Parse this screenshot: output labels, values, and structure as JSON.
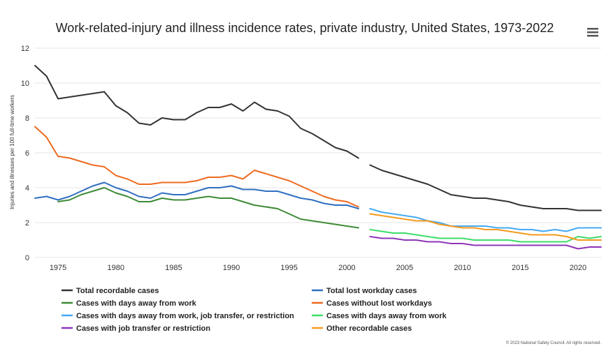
{
  "chart_data": {
    "type": "line",
    "title": "Work-related-injury and illness incidence rates, private industry, United States, 1973-2022",
    "xlabel": "",
    "ylabel": "Injuries and illnesses per 100 full-time workers",
    "xlim": [
      1973,
      2022
    ],
    "ylim": [
      0,
      12
    ],
    "x_ticks": [
      "1975",
      "1980",
      "1985",
      "1990",
      "1995",
      "2000",
      "2005",
      "2010",
      "2015",
      "2020"
    ],
    "y_ticks": [
      "0",
      "2",
      "4",
      "6",
      "8",
      "10",
      "12"
    ],
    "grid": true,
    "legend_position": "bottom",
    "credit": "© 2023 National Safety Council. All rights reserved.",
    "series": [
      {
        "name": "Total recordable cases",
        "color": "#333333",
        "segments": [
          [
            [
              1973,
              11.0
            ],
            [
              1974,
              10.4
            ],
            [
              1975,
              9.1
            ],
            [
              1976,
              9.2
            ],
            [
              1977,
              9.3
            ],
            [
              1978,
              9.4
            ],
            [
              1979,
              9.5
            ],
            [
              1980,
              8.7
            ],
            [
              1981,
              8.3
            ],
            [
              1982,
              7.7
            ],
            [
              1983,
              7.6
            ],
            [
              1984,
              8.0
            ],
            [
              1985,
              7.9
            ],
            [
              1986,
              7.9
            ],
            [
              1987,
              8.3
            ],
            [
              1988,
              8.6
            ],
            [
              1989,
              8.6
            ],
            [
              1990,
              8.8
            ],
            [
              1991,
              8.4
            ],
            [
              1992,
              8.9
            ],
            [
              1993,
              8.5
            ],
            [
              1994,
              8.4
            ],
            [
              1995,
              8.1
            ],
            [
              1996,
              7.4
            ],
            [
              1997,
              7.1
            ],
            [
              1998,
              6.7
            ],
            [
              1999,
              6.3
            ],
            [
              2000,
              6.1
            ],
            [
              2001,
              5.7
            ]
          ],
          [
            [
              2002,
              5.3
            ],
            [
              2003,
              5.0
            ],
            [
              2004,
              4.8
            ],
            [
              2005,
              4.6
            ],
            [
              2006,
              4.4
            ],
            [
              2007,
              4.2
            ],
            [
              2008,
              3.9
            ],
            [
              2009,
              3.6
            ],
            [
              2010,
              3.5
            ],
            [
              2011,
              3.4
            ],
            [
              2012,
              3.4
            ],
            [
              2013,
              3.3
            ],
            [
              2014,
              3.2
            ],
            [
              2015,
              3.0
            ],
            [
              2016,
              2.9
            ],
            [
              2017,
              2.8
            ],
            [
              2018,
              2.8
            ],
            [
              2019,
              2.8
            ],
            [
              2020,
              2.7
            ],
            [
              2021,
              2.7
            ],
            [
              2022,
              2.7
            ]
          ]
        ]
      },
      {
        "name": "Total lost workday cases",
        "color": "#2f6fc1",
        "segments": [
          [
            [
              1973,
              3.4
            ],
            [
              1974,
              3.5
            ],
            [
              1975,
              3.3
            ],
            [
              1976,
              3.5
            ],
            [
              1977,
              3.8
            ],
            [
              1978,
              4.1
            ],
            [
              1979,
              4.3
            ],
            [
              1980,
              4.0
            ],
            [
              1981,
              3.8
            ],
            [
              1982,
              3.5
            ],
            [
              1983,
              3.4
            ],
            [
              1984,
              3.7
            ],
            [
              1985,
              3.6
            ],
            [
              1986,
              3.6
            ],
            [
              1987,
              3.8
            ],
            [
              1988,
              4.0
            ],
            [
              1989,
              4.0
            ],
            [
              1990,
              4.1
            ],
            [
              1991,
              3.9
            ],
            [
              1992,
              3.9
            ],
            [
              1993,
              3.8
            ],
            [
              1994,
              3.8
            ],
            [
              1995,
              3.6
            ],
            [
              1996,
              3.4
            ],
            [
              1997,
              3.3
            ],
            [
              1998,
              3.1
            ],
            [
              1999,
              3.0
            ],
            [
              2000,
              3.0
            ],
            [
              2001,
              2.8
            ]
          ]
        ]
      },
      {
        "name": "Cases with days away from work",
        "color": "#3d8b37",
        "segments": [
          [
            [
              1975,
              3.2
            ],
            [
              1976,
              3.3
            ],
            [
              1977,
              3.6
            ],
            [
              1978,
              3.8
            ],
            [
              1979,
              4.0
            ],
            [
              1980,
              3.7
            ],
            [
              1981,
              3.5
            ],
            [
              1982,
              3.2
            ],
            [
              1983,
              3.2
            ],
            [
              1984,
              3.4
            ],
            [
              1985,
              3.3
            ],
            [
              1986,
              3.3
            ],
            [
              1987,
              3.4
            ],
            [
              1988,
              3.5
            ],
            [
              1989,
              3.4
            ],
            [
              1990,
              3.4
            ],
            [
              1991,
              3.2
            ],
            [
              1992,
              3.0
            ],
            [
              1993,
              2.9
            ],
            [
              1994,
              2.8
            ],
            [
              1995,
              2.5
            ],
            [
              1996,
              2.2
            ],
            [
              1997,
              2.1
            ],
            [
              1998,
              2.0
            ],
            [
              1999,
              1.9
            ],
            [
              2000,
              1.8
            ],
            [
              2001,
              1.7
            ]
          ]
        ]
      },
      {
        "name": "Cases without lost workdays",
        "color": "#ee6a1f",
        "segments": [
          [
            [
              1973,
              7.5
            ],
            [
              1974,
              6.9
            ],
            [
              1975,
              5.8
            ],
            [
              1976,
              5.7
            ],
            [
              1977,
              5.5
            ],
            [
              1978,
              5.3
            ],
            [
              1979,
              5.2
            ],
            [
              1980,
              4.7
            ],
            [
              1981,
              4.5
            ],
            [
              1982,
              4.2
            ],
            [
              1983,
              4.2
            ],
            [
              1984,
              4.3
            ],
            [
              1985,
              4.3
            ],
            [
              1986,
              4.3
            ],
            [
              1987,
              4.4
            ],
            [
              1988,
              4.6
            ],
            [
              1989,
              4.6
            ],
            [
              1990,
              4.7
            ],
            [
              1991,
              4.5
            ],
            [
              1992,
              5.0
            ],
            [
              1993,
              4.8
            ],
            [
              1994,
              4.6
            ],
            [
              1995,
              4.4
            ],
            [
              1996,
              4.1
            ],
            [
              1997,
              3.8
            ],
            [
              1998,
              3.5
            ],
            [
              1999,
              3.3
            ],
            [
              2000,
              3.2
            ],
            [
              2001,
              2.9
            ]
          ]
        ]
      },
      {
        "name": "Cases with days away from work, job transfer, or restriction",
        "color": "#45aaf2",
        "segments": [
          [
            [
              2002,
              2.8
            ],
            [
              2003,
              2.6
            ],
            [
              2004,
              2.5
            ],
            [
              2005,
              2.4
            ],
            [
              2006,
              2.3
            ],
            [
              2007,
              2.1
            ],
            [
              2008,
              2.0
            ],
            [
              2009,
              1.8
            ],
            [
              2010,
              1.8
            ],
            [
              2011,
              1.8
            ],
            [
              2012,
              1.8
            ],
            [
              2013,
              1.7
            ],
            [
              2014,
              1.7
            ],
            [
              2015,
              1.6
            ],
            [
              2016,
              1.6
            ],
            [
              2017,
              1.5
            ],
            [
              2018,
              1.6
            ],
            [
              2019,
              1.5
            ],
            [
              2020,
              1.7
            ],
            [
              2021,
              1.7
            ],
            [
              2022,
              1.7
            ]
          ]
        ]
      },
      {
        "name": "Cases with days away from work",
        "color": "#3ddc6a",
        "segments": [
          [
            [
              2002,
              1.6
            ],
            [
              2003,
              1.5
            ],
            [
              2004,
              1.4
            ],
            [
              2005,
              1.4
            ],
            [
              2006,
              1.3
            ],
            [
              2007,
              1.2
            ],
            [
              2008,
              1.1
            ],
            [
              2009,
              1.1
            ],
            [
              2010,
              1.1
            ],
            [
              2011,
              1.0
            ],
            [
              2012,
              1.0
            ],
            [
              2013,
              1.0
            ],
            [
              2014,
              1.0
            ],
            [
              2015,
              0.9
            ],
            [
              2016,
              0.9
            ],
            [
              2017,
              0.9
            ],
            [
              2018,
              0.9
            ],
            [
              2019,
              0.9
            ],
            [
              2020,
              1.2
            ],
            [
              2021,
              1.1
            ],
            [
              2022,
              1.2
            ]
          ]
        ]
      },
      {
        "name": "Cases with job transfer or restriction",
        "color": "#8e35b8",
        "segments": [
          [
            [
              2002,
              1.2
            ],
            [
              2003,
              1.1
            ],
            [
              2004,
              1.1
            ],
            [
              2005,
              1.0
            ],
            [
              2006,
              1.0
            ],
            [
              2007,
              0.9
            ],
            [
              2008,
              0.9
            ],
            [
              2009,
              0.8
            ],
            [
              2010,
              0.8
            ],
            [
              2011,
              0.7
            ],
            [
              2012,
              0.7
            ],
            [
              2013,
              0.7
            ],
            [
              2014,
              0.7
            ],
            [
              2015,
              0.7
            ],
            [
              2016,
              0.7
            ],
            [
              2017,
              0.7
            ],
            [
              2018,
              0.7
            ],
            [
              2019,
              0.7
            ],
            [
              2020,
              0.5
            ],
            [
              2021,
              0.6
            ],
            [
              2022,
              0.6
            ]
          ]
        ]
      },
      {
        "name": "Other recordable cases",
        "color": "#f39a1e",
        "segments": [
          [
            [
              2002,
              2.5
            ],
            [
              2003,
              2.4
            ],
            [
              2004,
              2.3
            ],
            [
              2005,
              2.2
            ],
            [
              2006,
              2.1
            ],
            [
              2007,
              2.1
            ],
            [
              2008,
              1.9
            ],
            [
              2009,
              1.8
            ],
            [
              2010,
              1.7
            ],
            [
              2011,
              1.7
            ],
            [
              2012,
              1.6
            ],
            [
              2013,
              1.6
            ],
            [
              2014,
              1.5
            ],
            [
              2015,
              1.4
            ],
            [
              2016,
              1.3
            ],
            [
              2017,
              1.3
            ],
            [
              2018,
              1.3
            ],
            [
              2019,
              1.2
            ],
            [
              2020,
              1.0
            ],
            [
              2021,
              1.0
            ],
            [
              2022,
              1.0
            ]
          ]
        ]
      }
    ]
  }
}
